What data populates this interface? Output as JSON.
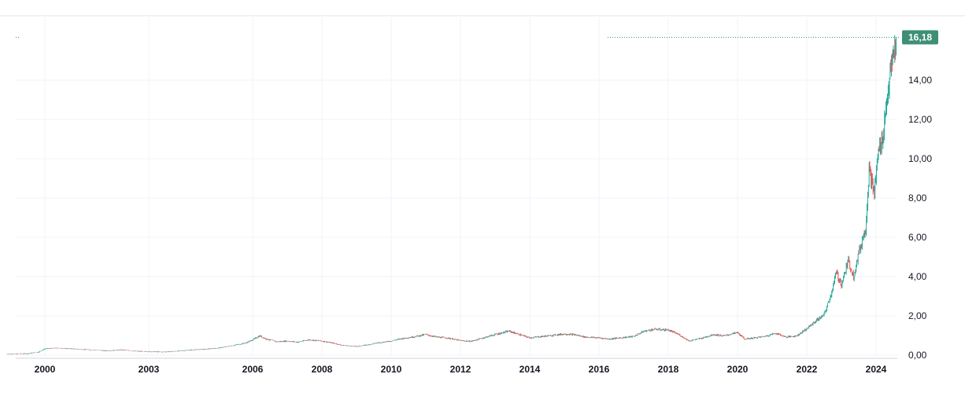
{
  "chart_data": {
    "type": "candlestick",
    "x_tick_labels": [
      "2000",
      "2003",
      "2006",
      "2008",
      "2010",
      "2012",
      "2014",
      "2016",
      "2018",
      "2020",
      "2022",
      "2024"
    ],
    "y_tick_labels": [
      "0,00",
      "2,00",
      "4,00",
      "6,00",
      "8,00",
      "10,00",
      "12,00",
      "14,00"
    ],
    "ylim": [
      0,
      16.6
    ],
    "xlim": [
      1998.8,
      2024.9
    ],
    "grid": true,
    "last_price": 16.18,
    "last_price_label": "16,18",
    "series": [
      {
        "x": 1998.9,
        "y": 0.05
      },
      {
        "x": 1999.5,
        "y": 0.08
      },
      {
        "x": 1999.8,
        "y": 0.15
      },
      {
        "x": 2000.0,
        "y": 0.32
      },
      {
        "x": 2000.3,
        "y": 0.36
      },
      {
        "x": 2000.7,
        "y": 0.33
      },
      {
        "x": 2001.0,
        "y": 0.3
      },
      {
        "x": 2001.4,
        "y": 0.26
      },
      {
        "x": 2001.8,
        "y": 0.22
      },
      {
        "x": 2002.2,
        "y": 0.27
      },
      {
        "x": 2002.6,
        "y": 0.2
      },
      {
        "x": 2003.0,
        "y": 0.18
      },
      {
        "x": 2003.4,
        "y": 0.16
      },
      {
        "x": 2003.8,
        "y": 0.2
      },
      {
        "x": 2004.2,
        "y": 0.26
      },
      {
        "x": 2004.6,
        "y": 0.3
      },
      {
        "x": 2005.0,
        "y": 0.36
      },
      {
        "x": 2005.4,
        "y": 0.48
      },
      {
        "x": 2005.8,
        "y": 0.62
      },
      {
        "x": 2006.0,
        "y": 0.78
      },
      {
        "x": 2006.2,
        "y": 0.98
      },
      {
        "x": 2006.4,
        "y": 0.82
      },
      {
        "x": 2006.7,
        "y": 0.68
      },
      {
        "x": 2007.0,
        "y": 0.72
      },
      {
        "x": 2007.3,
        "y": 0.66
      },
      {
        "x": 2007.6,
        "y": 0.78
      },
      {
        "x": 2008.0,
        "y": 0.72
      },
      {
        "x": 2008.3,
        "y": 0.62
      },
      {
        "x": 2008.6,
        "y": 0.5
      },
      {
        "x": 2009.0,
        "y": 0.44
      },
      {
        "x": 2009.3,
        "y": 0.52
      },
      {
        "x": 2009.6,
        "y": 0.62
      },
      {
        "x": 2010.0,
        "y": 0.72
      },
      {
        "x": 2010.3,
        "y": 0.84
      },
      {
        "x": 2010.6,
        "y": 0.92
      },
      {
        "x": 2011.0,
        "y": 1.05
      },
      {
        "x": 2011.3,
        "y": 0.92
      },
      {
        "x": 2011.6,
        "y": 0.88
      },
      {
        "x": 2012.0,
        "y": 0.74
      },
      {
        "x": 2012.3,
        "y": 0.7
      },
      {
        "x": 2012.6,
        "y": 0.85
      },
      {
        "x": 2013.0,
        "y": 1.05
      },
      {
        "x": 2013.4,
        "y": 1.22
      },
      {
        "x": 2013.7,
        "y": 1.05
      },
      {
        "x": 2014.0,
        "y": 0.88
      },
      {
        "x": 2014.3,
        "y": 0.94
      },
      {
        "x": 2014.6,
        "y": 1.0
      },
      {
        "x": 2015.0,
        "y": 1.08
      },
      {
        "x": 2015.3,
        "y": 1.04
      },
      {
        "x": 2015.6,
        "y": 0.92
      },
      {
        "x": 2016.0,
        "y": 0.88
      },
      {
        "x": 2016.3,
        "y": 0.82
      },
      {
        "x": 2016.6,
        "y": 0.88
      },
      {
        "x": 2017.0,
        "y": 0.95
      },
      {
        "x": 2017.3,
        "y": 1.22
      },
      {
        "x": 2017.6,
        "y": 1.32
      },
      {
        "x": 2018.0,
        "y": 1.28
      },
      {
        "x": 2018.3,
        "y": 1.05
      },
      {
        "x": 2018.6,
        "y": 0.72
      },
      {
        "x": 2019.0,
        "y": 0.88
      },
      {
        "x": 2019.3,
        "y": 1.05
      },
      {
        "x": 2019.6,
        "y": 0.98
      },
      {
        "x": 2020.0,
        "y": 1.15
      },
      {
        "x": 2020.2,
        "y": 0.82
      },
      {
        "x": 2020.5,
        "y": 0.88
      },
      {
        "x": 2020.8,
        "y": 0.96
      },
      {
        "x": 2021.1,
        "y": 1.12
      },
      {
        "x": 2021.4,
        "y": 0.92
      },
      {
        "x": 2021.7,
        "y": 0.98
      },
      {
        "x": 2022.0,
        "y": 1.35
      },
      {
        "x": 2022.3,
        "y": 1.8
      },
      {
        "x": 2022.5,
        "y": 2.05
      },
      {
        "x": 2022.7,
        "y": 3.1
      },
      {
        "x": 2022.85,
        "y": 4.2
      },
      {
        "x": 2023.0,
        "y": 3.6
      },
      {
        "x": 2023.2,
        "y": 4.8
      },
      {
        "x": 2023.35,
        "y": 4.0
      },
      {
        "x": 2023.5,
        "y": 5.2
      },
      {
        "x": 2023.7,
        "y": 6.5
      },
      {
        "x": 2023.8,
        "y": 9.5
      },
      {
        "x": 2023.95,
        "y": 8.2
      },
      {
        "x": 2024.05,
        "y": 10.2
      },
      {
        "x": 2024.2,
        "y": 11.2
      },
      {
        "x": 2024.35,
        "y": 13.6
      },
      {
        "x": 2024.5,
        "y": 15.3
      },
      {
        "x": 2024.6,
        "y": 16.18
      }
    ]
  }
}
